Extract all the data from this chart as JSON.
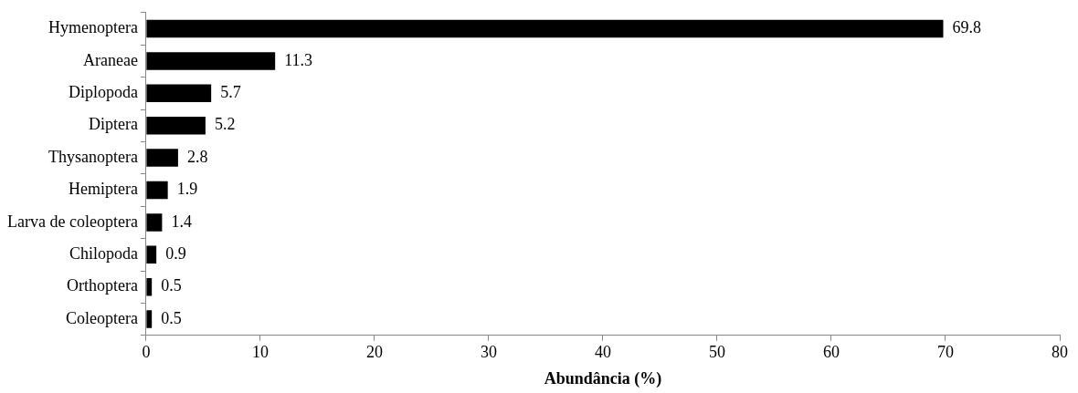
{
  "chart_data": {
    "type": "bar",
    "orientation": "horizontal",
    "xlabel": "Abundância (%)",
    "categories": [
      "Hymenoptera",
      "Araneae",
      "Diplopoda",
      "Diptera",
      "Thysanoptera",
      "Hemiptera",
      "Larva de coleoptera",
      "Chilopoda",
      "Orthoptera",
      "Coleoptera"
    ],
    "values": [
      69.8,
      11.3,
      5.7,
      5.2,
      2.8,
      1.9,
      1.4,
      0.9,
      0.5,
      0.5
    ],
    "color": "#000000",
    "xlim": [
      0,
      80
    ],
    "xticks": [
      0,
      10,
      20,
      30,
      40,
      50,
      60,
      70,
      80
    ],
    "grid": false,
    "legend": false,
    "data_labels": true
  }
}
